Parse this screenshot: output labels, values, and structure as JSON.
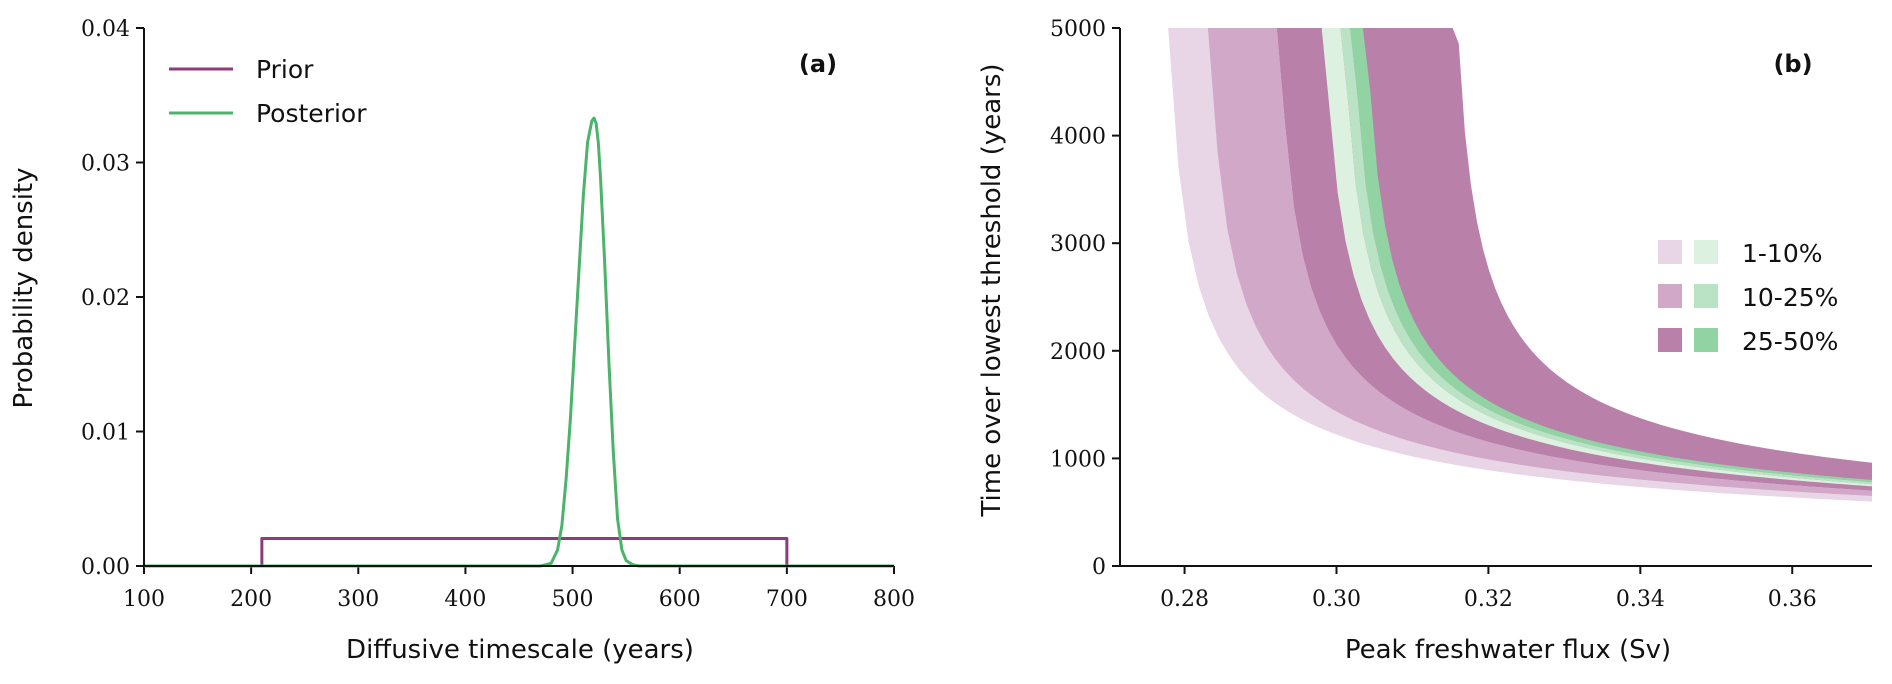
{
  "chart_data": [
    {
      "type": "line",
      "panel_label": "(a)",
      "xlabel": "Diffusive timescale (years)",
      "ylabel": "Probability density",
      "xlim": [
        100,
        800
      ],
      "ylim": [
        0,
        0.04
      ],
      "x_ticks": [
        100,
        200,
        300,
        400,
        500,
        600,
        700,
        800
      ],
      "x_tick_labels": [
        "100",
        "200",
        "300",
        "400",
        "500",
        "600",
        "700",
        "800"
      ],
      "y_ticks": [
        0,
        0.01,
        0.02,
        0.03,
        0.04
      ],
      "y_tick_labels": [
        "0.00",
        "0.01",
        "0.02",
        "0.03",
        "0.04"
      ],
      "legend_position": "top-left",
      "series": [
        {
          "name": "Prior",
          "color": "#8e3b7d",
          "x": [
            100,
            210,
            210,
            700,
            700
          ],
          "y": [
            0,
            0,
            0.00204,
            0.00204,
            0
          ]
        },
        {
          "name": "Posterior",
          "color": "#4cb36a",
          "x": [
            100,
            470,
            480,
            486,
            490,
            494,
            498,
            502,
            506,
            510,
            514,
            518,
            520,
            522,
            524,
            526,
            530,
            534,
            538,
            542,
            546,
            550,
            556,
            562,
            570,
            800
          ],
          "y": [
            0,
            0,
            0.0002,
            0.0012,
            0.003,
            0.0065,
            0.011,
            0.0165,
            0.022,
            0.0275,
            0.0315,
            0.0331,
            0.0333,
            0.0329,
            0.0315,
            0.029,
            0.0225,
            0.015,
            0.0085,
            0.0035,
            0.0012,
            0.0004,
            0.0001,
            0,
            0,
            0
          ]
        }
      ]
    },
    {
      "type": "area",
      "panel_label": "(b)",
      "xlabel": "Peak freshwater flux (Sv)",
      "ylabel": "Time over lowest threshold (years)",
      "xlim": [
        0.2715,
        0.3705
      ],
      "ylim": [
        0,
        5000
      ],
      "x_ticks": [
        0.28,
        0.3,
        0.32,
        0.34,
        0.36
      ],
      "x_tick_labels": [
        "0.28",
        "0.30",
        "0.32",
        "0.34",
        "0.36"
      ],
      "y_ticks": [
        0,
        1000,
        2000,
        3000,
        4000,
        5000
      ],
      "y_tick_labels": [
        "0",
        "1000",
        "2000",
        "3000",
        "4000",
        "5000"
      ],
      "legend_position": "center-right",
      "legend": [
        {
          "label": "1-10%",
          "colors": [
            "#e8d5e5",
            "#ddf1e1"
          ]
        },
        {
          "label": "10-25%",
          "colors": [
            "#d1a8c8",
            "#b9e3c4"
          ]
        },
        {
          "label": "25-50%",
          "colors": [
            "#b980aa",
            "#92d3a3"
          ]
        }
      ],
      "bands": [
        {
          "name": "Prior 1-10%",
          "color": "#e8d5e5",
          "x_cross_5000": [
            0.2765,
            0.2818
          ],
          "y_at_right": [
            600,
            650
          ]
        },
        {
          "name": "Prior 10-25%",
          "color": "#d1a8c8",
          "x_cross_5000": [
            0.2818,
            0.291
          ],
          "y_at_right": [
            650,
            700
          ]
        },
        {
          "name": "Prior 25-50%",
          "color": "#b980aa",
          "x_cross_5000": [
            0.291,
            0.3145
          ],
          "y_at_right": [
            700,
            960
          ]
        },
        {
          "name": "Posterior 1-10%",
          "color": "#ddf1e1",
          "x_cross_5000": [
            0.297,
            0.2995
          ],
          "y_at_right": [
            740,
            760
          ]
        },
        {
          "name": "Posterior 10-25%",
          "color": "#b9e3c4",
          "x_cross_5000": [
            0.2995,
            0.3008
          ],
          "y_at_right": [
            760,
            780
          ]
        },
        {
          "name": "Posterior 25-50%",
          "color": "#92d3a3",
          "x_cross_5000": [
            0.3008,
            0.3025
          ],
          "y_at_right": [
            780,
            800
          ]
        }
      ]
    }
  ]
}
